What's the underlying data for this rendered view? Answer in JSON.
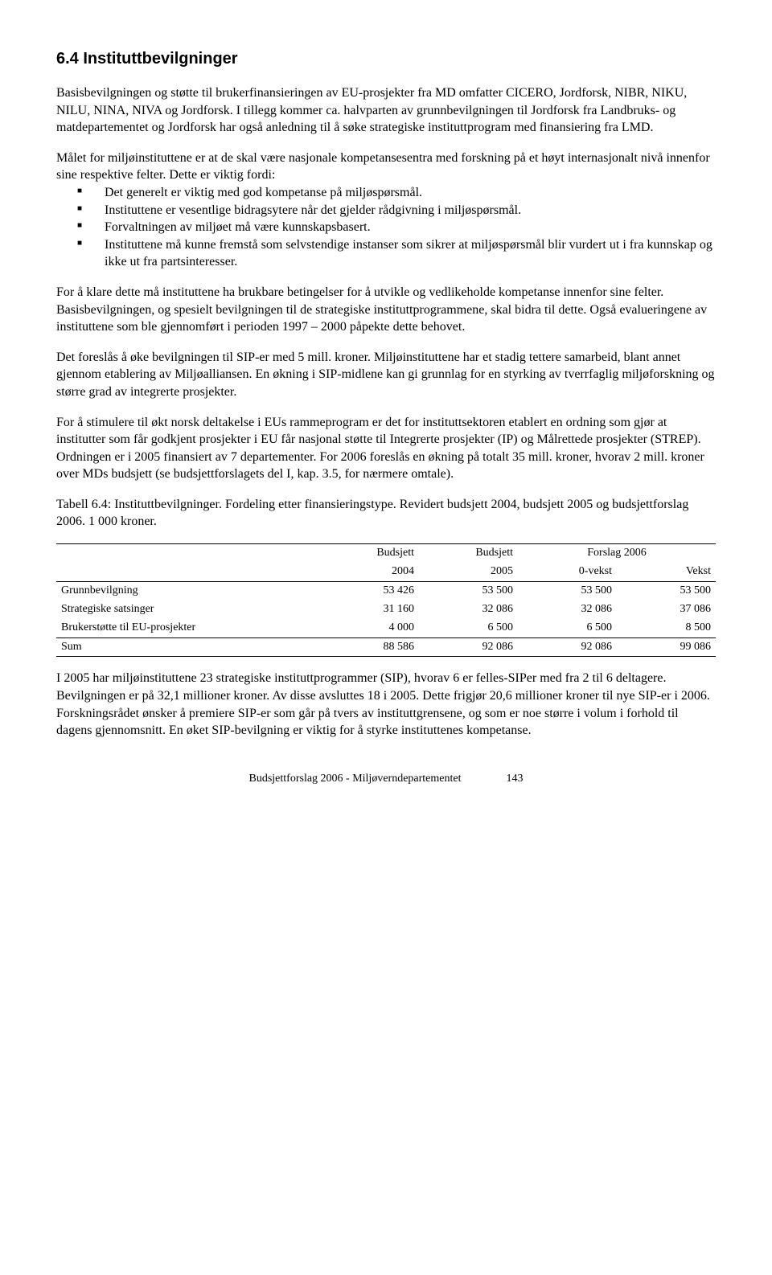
{
  "heading": "6.4   Instituttbevilgninger",
  "para1": "Basisbevilgningen og støtte til brukerfinansieringen av EU-prosjekter fra MD omfatter CICERO, Jordforsk, NIBR, NIKU, NILU, NINA, NIVA og Jordforsk. I tillegg kommer ca. halvparten av grunnbevilgningen til Jordforsk fra Landbruks- og matdepartementet og Jordforsk har også anledning til å søke strategiske instituttprogram med finansiering fra LMD.",
  "para2": "Målet for miljøinstituttene er at de skal være nasjonale kompetansesentra med forskning på et høyt internasjonalt nivå innenfor sine respektive felter. Dette er viktig fordi:",
  "bullets": [
    "Det generelt er viktig med god kompetanse på miljøspørsmål.",
    "Instituttene er vesentlige bidragsytere når det gjelder rådgivning i miljøspørsmål.",
    "Forvaltningen av miljøet må være kunnskapsbasert.",
    "Instituttene må kunne fremstå som selvstendige instanser som sikrer at miljøspørsmål blir vurdert ut i fra kunnskap og ikke ut fra partsinteresser."
  ],
  "para3": "For å klare dette må instituttene ha brukbare betingelser for å utvikle og vedlikeholde kompetanse innenfor sine felter. Basisbevilgningen, og spesielt bevilgningen til de strategiske instituttprogrammene, skal bidra til dette. Også evalueringene av instituttene som ble gjennomført i perioden 1997 – 2000 påpekte dette behovet.",
  "para4": "Det foreslås å øke bevilgningen til SIP-er med 5 mill. kroner. Miljøinstituttene har et stadig tettere samarbeid, blant annet gjennom etablering av Miljøalliansen. En økning i SIP-midlene kan gi grunnlag for en styrking av tverrfaglig miljøforskning og større grad av integrerte prosjekter.",
  "para5": "For å stimulere til økt norsk deltakelse i EUs rammeprogram er det for instituttsektoren etablert en ordning som gjør at institutter som får godkjent prosjekter i EU får nasjonal støtte til Integrerte prosjekter (IP) og Målrettede prosjekter (STREP). Ordningen er i 2005 finansiert av 7 departementer. For 2006 foreslås en økning på totalt 35 mill. kroner, hvorav 2 mill. kroner over MDs budsjett (se budsjettforslagets del I, kap. 3.5, for nærmere omtale).",
  "tableCaption": "Tabell 6.4: Instituttbevilgninger. Fordeling etter finansieringstype. Revidert budsjett 2004, budsjett 2005 og budsjettforslag 2006. 1 000 kroner.",
  "table": {
    "head1": [
      "",
      "Budsjett",
      "Budsjett",
      "Forslag 2006",
      ""
    ],
    "head2": [
      "",
      "2004",
      "2005",
      "0-vekst",
      "Vekst"
    ],
    "rows": [
      [
        "Grunnbevilgning",
        "53 426",
        "53 500",
        "53 500",
        "53 500"
      ],
      [
        "Strategiske satsinger",
        "31 160",
        "32 086",
        "32 086",
        "37 086"
      ],
      [
        "Brukerstøtte til EU-prosjekter",
        "4 000",
        "6 500",
        "6 500",
        "8 500"
      ]
    ],
    "sum": [
      "Sum",
      "88 586",
      "92 086",
      "92 086",
      "99 086"
    ]
  },
  "para6": "I 2005 har miljøinstituttene 23 strategiske instituttprogrammer (SIP), hvorav 6 er felles-SIPer med fra 2 til 6 deltagere. Bevilgningen er på 32,1 millioner kroner. Av disse avsluttes 18 i 2005. Dette frigjør 20,6 millioner kroner til nye SIP-er i 2006. Forskningsrådet ønsker å premiere SIP-er som går på tvers av instituttgrensene, og som er noe større i volum i forhold til dagens gjennomsnitt. En øket SIP-bevilgning er viktig for å styrke instituttenes kompetanse.",
  "footer": "Budsjettforslag 2006 - Miljøverndepartementet",
  "pageNumber": "143"
}
